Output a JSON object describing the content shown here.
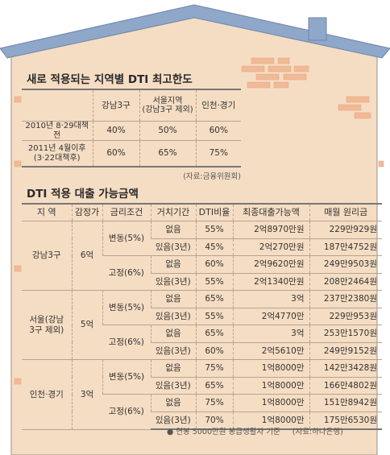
{
  "colors": {
    "roof": "#8fa7c8",
    "wall": "#f5ddc3",
    "brick": "#f1b996",
    "house_edge": "#9c8f83"
  },
  "table1": {
    "title": "새로 적용되는 지역별 DTI 최고한도",
    "headers": [
      "",
      "강남3구",
      "서울지역\n(강남3구 제외)",
      "인천·경기"
    ],
    "rows": [
      {
        "label": "2010년 8·29대책 전",
        "values": [
          "40%",
          "50%",
          "60%"
        ]
      },
      {
        "label": "2011년 4월이후\n(3·22대책후)",
        "values": [
          "60%",
          "65%",
          "75%"
        ]
      }
    ],
    "source": "(자료:금융위원회)"
  },
  "table2": {
    "title": "DTI 적용 대출 가능금액",
    "headers": [
      "지  역",
      "감정가",
      "금리조건",
      "거치기간",
      "DTI비율",
      "최종대출가능액",
      "매월 원리금"
    ],
    "regions": [
      {
        "name": "강남3구",
        "price": "6억",
        "rates": [
          {
            "cond": "변동(5%)",
            "rows": [
              {
                "period": "없음",
                "dti": "55%",
                "loan": "2억8970만원",
                "monthly": "229만929원"
              },
              {
                "period": "있음(3년)",
                "dti": "45%",
                "loan": "2억270만원",
                "monthly": "187만4752원"
              }
            ]
          },
          {
            "cond": "고정(6%)",
            "rows": [
              {
                "period": "없음",
                "dti": "60%",
                "loan": "2억9620만원",
                "monthly": "249만9503원"
              },
              {
                "period": "있음(3년)",
                "dti": "55%",
                "loan": "2억1340만원",
                "monthly": "208만2464원"
              }
            ]
          }
        ]
      },
      {
        "name": "서울(강남\n3구 제외)",
        "price": "5억",
        "rates": [
          {
            "cond": "변동(5%)",
            "rows": [
              {
                "period": "없음",
                "dti": "65%",
                "loan": "3억",
                "monthly": "237만2380원"
              },
              {
                "period": "있음(3년)",
                "dti": "55%",
                "loan": "2억4770만",
                "monthly": "229만953원"
              }
            ]
          },
          {
            "cond": "고정(6%)",
            "rows": [
              {
                "period": "없음",
                "dti": "65%",
                "loan": "3억",
                "monthly": "253만1570원"
              },
              {
                "period": "있음(3년)",
                "dti": "60%",
                "loan": "2억5610만",
                "monthly": "249만9152원"
              }
            ]
          }
        ]
      },
      {
        "name": "인천·경기",
        "price": "3억",
        "rates": [
          {
            "cond": "변동(5%)",
            "rows": [
              {
                "period": "없음",
                "dti": "75%",
                "loan": "1억8000만",
                "monthly": "142만3428원"
              },
              {
                "period": "있음(3년)",
                "dti": "65%",
                "loan": "1억8000만",
                "monthly": "166만4802원"
              }
            ]
          },
          {
            "cond": "고정(6%)",
            "rows": [
              {
                "period": "없음",
                "dti": "75%",
                "loan": "1억8000만",
                "monthly": "151만8942원"
              },
              {
                "period": "있음(3년)",
                "dti": "70%",
                "loan": "1억8000만",
                "monthly": "175만6530원"
              }
            ]
          }
        ]
      }
    ],
    "note": "● 연봉 5000만원 봉급생활자 기준",
    "source": "(자료:하나은행)"
  }
}
